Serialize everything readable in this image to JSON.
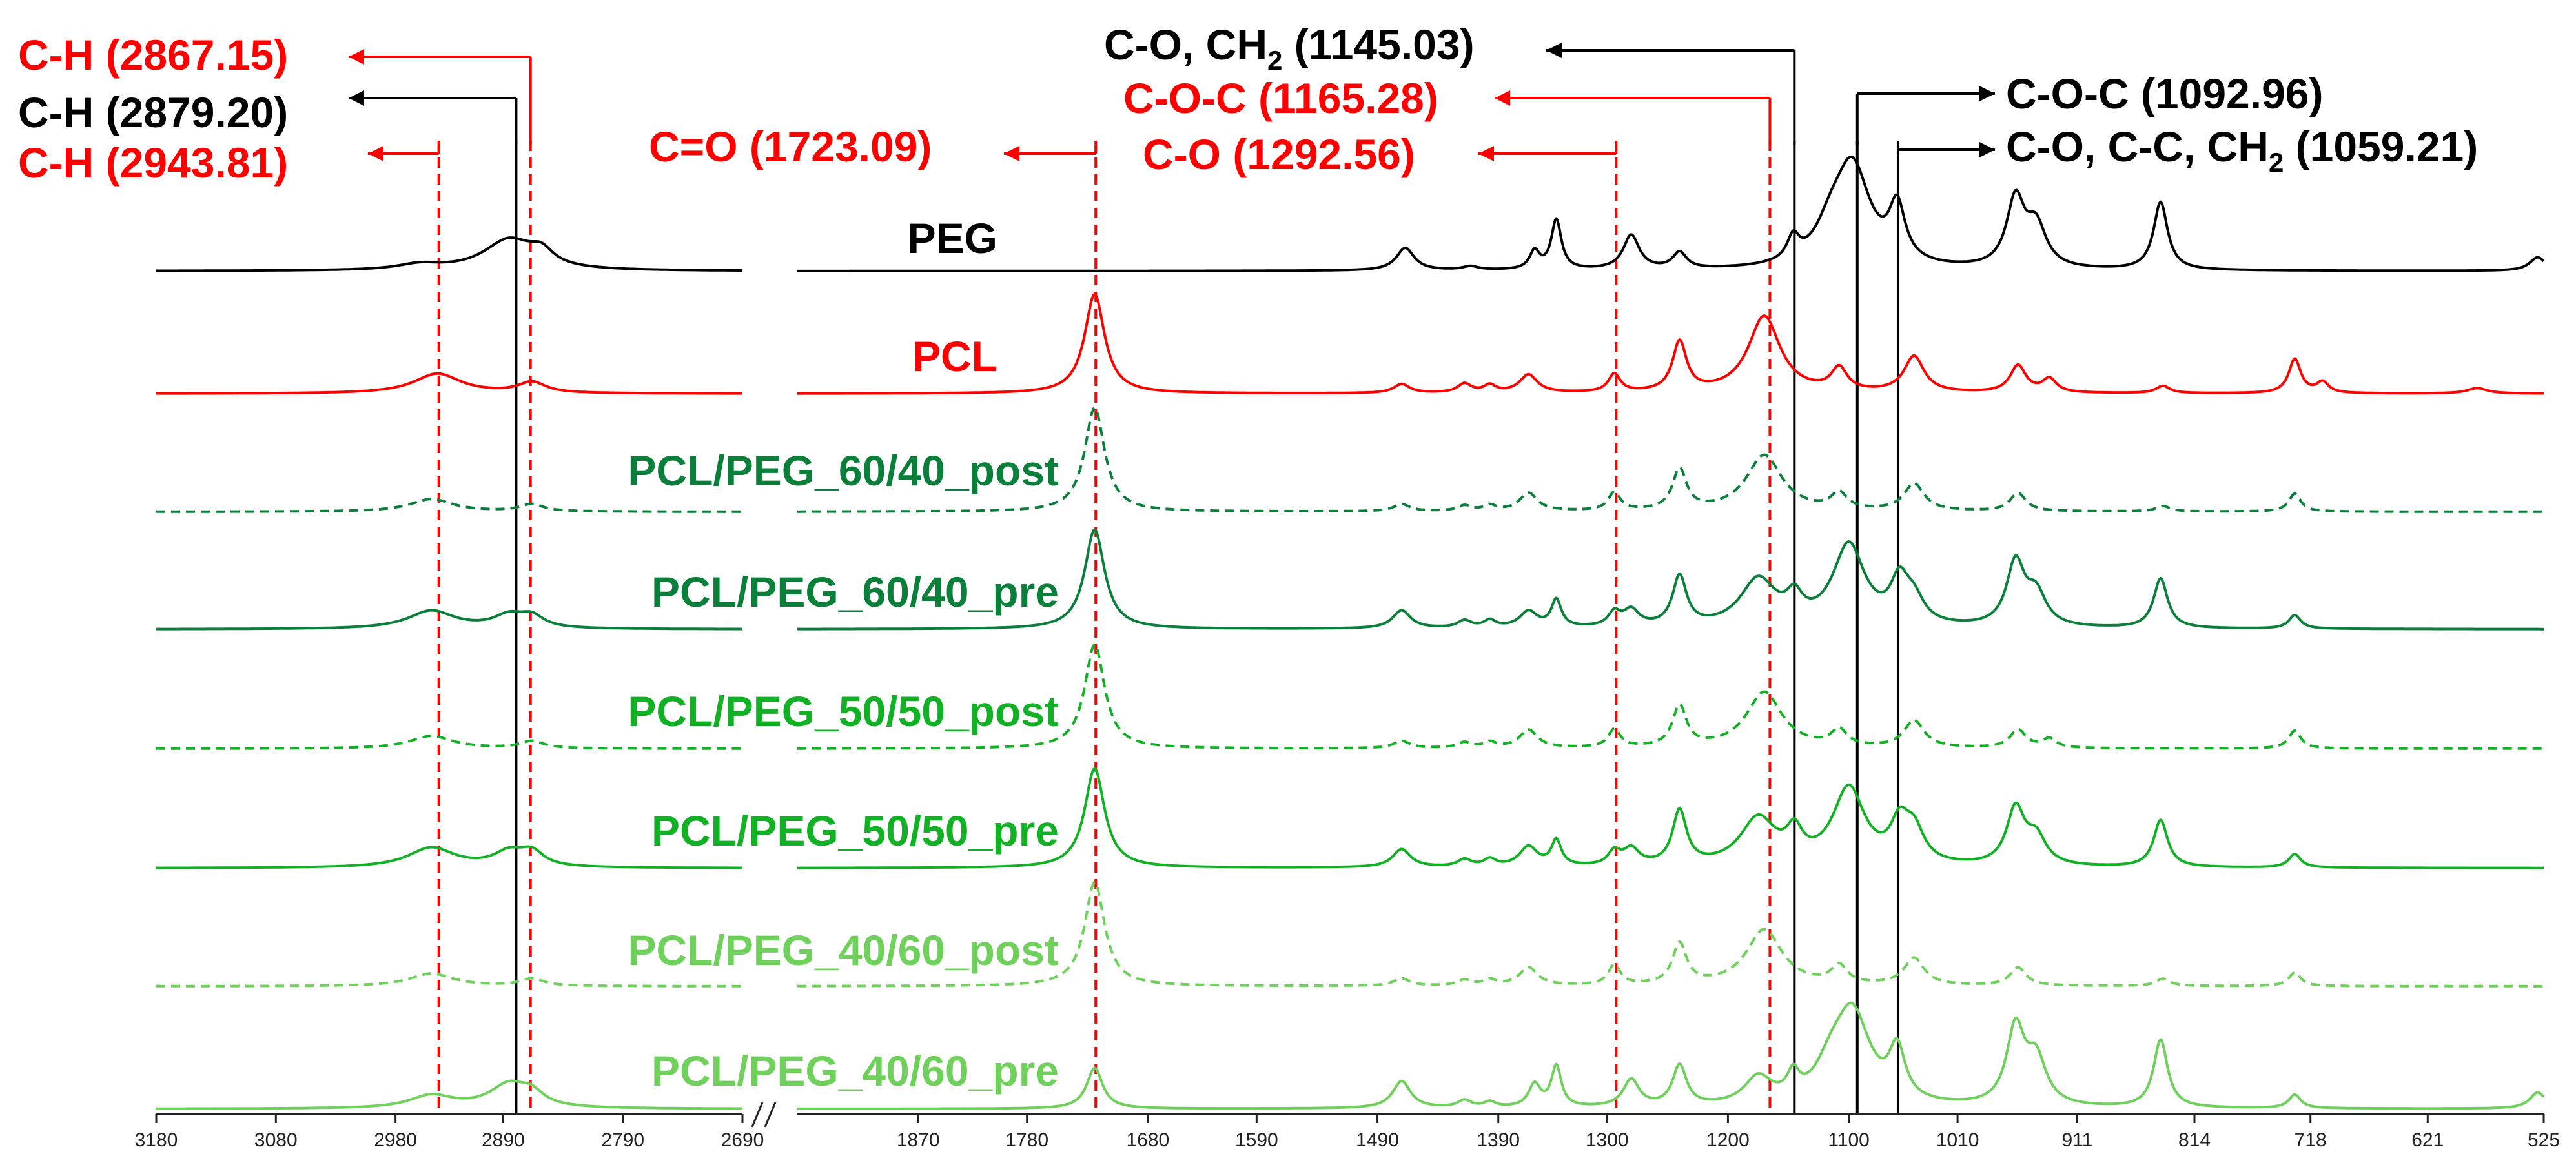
{
  "chart_data": {
    "type": "line",
    "title": "",
    "xlabel": "",
    "ylabel": "",
    "axis_break": "//",
    "x_axis": {
      "reversed": true,
      "left_segment": {
        "range": [
          3180,
          2690
        ],
        "ticks": [
          3180,
          3080,
          2980,
          2890,
          2790,
          2690
        ]
      },
      "right_segment": {
        "range": [
          1970,
          525
        ],
        "ticks": [
          1870,
          1780,
          1680,
          1590,
          1490,
          1390,
          1300,
          1200,
          1100,
          1010,
          911,
          814,
          718,
          621,
          525
        ]
      }
    },
    "series": [
      {
        "name": "PEG",
        "color": "#000000",
        "dash": false,
        "peaks": [
          {
            "x": 2960,
            "h": 0.06,
            "w": 22
          },
          {
            "x": 2885,
            "h": 0.34,
            "w": 26
          },
          {
            "x": 2858,
            "h": 0.15,
            "w": 12
          },
          {
            "x": 1467,
            "h": 0.25,
            "w": 9
          },
          {
            "x": 1413,
            "h": 0.04,
            "w": 8
          },
          {
            "x": 1360,
            "h": 0.2,
            "w": 5
          },
          {
            "x": 1342,
            "h": 0.55,
            "w": 5
          },
          {
            "x": 1280,
            "h": 0.38,
            "w": 8
          },
          {
            "x": 1240,
            "h": 0.18,
            "w": 7
          },
          {
            "x": 1146,
            "h": 0.25,
            "w": 6
          },
          {
            "x": 1097,
            "h": 1.1,
            "w": 18
          },
          {
            "x": 1115,
            "h": 0.3,
            "w": 15
          },
          {
            "x": 1060,
            "h": 0.6,
            "w": 8
          },
          {
            "x": 962,
            "h": 0.75,
            "w": 9
          },
          {
            "x": 945,
            "h": 0.45,
            "w": 10
          },
          {
            "x": 842,
            "h": 0.75,
            "w": 7
          },
          {
            "x": 530,
            "h": 0.15,
            "w": 8
          }
        ]
      },
      {
        "name": "PCL",
        "color": "#ff0000",
        "dash": false,
        "peaks": [
          {
            "x": 2945,
            "h": 0.22,
            "w": 24
          },
          {
            "x": 2866,
            "h": 0.12,
            "w": 14
          },
          {
            "x": 1724,
            "h": 1.1,
            "w": 10
          },
          {
            "x": 1470,
            "h": 0.1,
            "w": 8
          },
          {
            "x": 1418,
            "h": 0.1,
            "w": 7
          },
          {
            "x": 1397,
            "h": 0.08,
            "w": 6
          },
          {
            "x": 1365,
            "h": 0.2,
            "w": 9
          },
          {
            "x": 1294,
            "h": 0.2,
            "w": 6
          },
          {
            "x": 1240,
            "h": 0.55,
            "w": 7
          },
          {
            "x": 1170,
            "h": 0.85,
            "w": 16
          },
          {
            "x": 1108,
            "h": 0.25,
            "w": 8
          },
          {
            "x": 1046,
            "h": 0.4,
            "w": 10
          },
          {
            "x": 960,
            "h": 0.3,
            "w": 8
          },
          {
            "x": 934,
            "h": 0.15,
            "w": 7
          },
          {
            "x": 840,
            "h": 0.08,
            "w": 7
          },
          {
            "x": 731,
            "h": 0.38,
            "w": 6
          },
          {
            "x": 708,
            "h": 0.12,
            "w": 6
          },
          {
            "x": 580,
            "h": 0.06,
            "w": 10
          }
        ]
      },
      {
        "name": "PCL/PEG_60/40_post",
        "color": "#0a7f3a",
        "dash": true,
        "peaks": [
          {
            "x": 2950,
            "h": 0.14,
            "w": 22
          },
          {
            "x": 2866,
            "h": 0.08,
            "w": 12
          },
          {
            "x": 1724,
            "h": 1.15,
            "w": 10
          },
          {
            "x": 1470,
            "h": 0.08,
            "w": 8
          },
          {
            "x": 1418,
            "h": 0.06,
            "w": 7
          },
          {
            "x": 1397,
            "h": 0.06,
            "w": 6
          },
          {
            "x": 1365,
            "h": 0.2,
            "w": 9
          },
          {
            "x": 1294,
            "h": 0.2,
            "w": 6
          },
          {
            "x": 1240,
            "h": 0.45,
            "w": 7
          },
          {
            "x": 1170,
            "h": 0.62,
            "w": 18
          },
          {
            "x": 1108,
            "h": 0.18,
            "w": 8
          },
          {
            "x": 1046,
            "h": 0.3,
            "w": 10
          },
          {
            "x": 960,
            "h": 0.2,
            "w": 8
          },
          {
            "x": 840,
            "h": 0.06,
            "w": 7
          },
          {
            "x": 731,
            "h": 0.2,
            "w": 6
          }
        ]
      },
      {
        "name": "PCL/PEG_60/40_pre",
        "color": "#0a7f3a",
        "dash": false,
        "peaks": [
          {
            "x": 2950,
            "h": 0.2,
            "w": 24
          },
          {
            "x": 2885,
            "h": 0.14,
            "w": 16
          },
          {
            "x": 2866,
            "h": 0.12,
            "w": 12
          },
          {
            "x": 1724,
            "h": 1.1,
            "w": 10
          },
          {
            "x": 1470,
            "h": 0.2,
            "w": 9
          },
          {
            "x": 1418,
            "h": 0.08,
            "w": 7
          },
          {
            "x": 1397,
            "h": 0.08,
            "w": 6
          },
          {
            "x": 1365,
            "h": 0.18,
            "w": 9
          },
          {
            "x": 1342,
            "h": 0.3,
            "w": 5
          },
          {
            "x": 1294,
            "h": 0.15,
            "w": 6
          },
          {
            "x": 1280,
            "h": 0.18,
            "w": 8
          },
          {
            "x": 1240,
            "h": 0.55,
            "w": 7
          },
          {
            "x": 1175,
            "h": 0.52,
            "w": 18
          },
          {
            "x": 1145,
            "h": 0.25,
            "w": 8
          },
          {
            "x": 1100,
            "h": 0.9,
            "w": 16
          },
          {
            "x": 1058,
            "h": 0.45,
            "w": 9
          },
          {
            "x": 1046,
            "h": 0.25,
            "w": 10
          },
          {
            "x": 962,
            "h": 0.7,
            "w": 9
          },
          {
            "x": 945,
            "h": 0.35,
            "w": 10
          },
          {
            "x": 842,
            "h": 0.55,
            "w": 7
          },
          {
            "x": 731,
            "h": 0.15,
            "w": 6
          }
        ]
      },
      {
        "name": "PCL/PEG_50/50_post",
        "color": "#12b024",
        "dash": true,
        "peaks": [
          {
            "x": 2950,
            "h": 0.14,
            "w": 22
          },
          {
            "x": 2866,
            "h": 0.08,
            "w": 12
          },
          {
            "x": 1724,
            "h": 1.15,
            "w": 10
          },
          {
            "x": 1470,
            "h": 0.08,
            "w": 8
          },
          {
            "x": 1418,
            "h": 0.06,
            "w": 7
          },
          {
            "x": 1397,
            "h": 0.06,
            "w": 6
          },
          {
            "x": 1365,
            "h": 0.2,
            "w": 9
          },
          {
            "x": 1294,
            "h": 0.2,
            "w": 6
          },
          {
            "x": 1240,
            "h": 0.45,
            "w": 7
          },
          {
            "x": 1170,
            "h": 0.62,
            "w": 18
          },
          {
            "x": 1108,
            "h": 0.18,
            "w": 8
          },
          {
            "x": 1046,
            "h": 0.3,
            "w": 10
          },
          {
            "x": 960,
            "h": 0.2,
            "w": 8
          },
          {
            "x": 934,
            "h": 0.1,
            "w": 7
          },
          {
            "x": 731,
            "h": 0.2,
            "w": 6
          }
        ]
      },
      {
        "name": "PCL/PEG_50/50_pre",
        "color": "#12b024",
        "dash": false,
        "peaks": [
          {
            "x": 2950,
            "h": 0.22,
            "w": 24
          },
          {
            "x": 2885,
            "h": 0.16,
            "w": 16
          },
          {
            "x": 2866,
            "h": 0.15,
            "w": 12
          },
          {
            "x": 1724,
            "h": 1.1,
            "w": 10
          },
          {
            "x": 1470,
            "h": 0.2,
            "w": 9
          },
          {
            "x": 1418,
            "h": 0.08,
            "w": 7
          },
          {
            "x": 1397,
            "h": 0.08,
            "w": 6
          },
          {
            "x": 1365,
            "h": 0.22,
            "w": 9
          },
          {
            "x": 1342,
            "h": 0.28,
            "w": 5
          },
          {
            "x": 1294,
            "h": 0.15,
            "w": 6
          },
          {
            "x": 1280,
            "h": 0.18,
            "w": 8
          },
          {
            "x": 1240,
            "h": 0.6,
            "w": 7
          },
          {
            "x": 1175,
            "h": 0.52,
            "w": 18
          },
          {
            "x": 1145,
            "h": 0.3,
            "w": 8
          },
          {
            "x": 1100,
            "h": 0.85,
            "w": 16
          },
          {
            "x": 1058,
            "h": 0.4,
            "w": 9
          },
          {
            "x": 1046,
            "h": 0.35,
            "w": 10
          },
          {
            "x": 962,
            "h": 0.62,
            "w": 9
          },
          {
            "x": 945,
            "h": 0.3,
            "w": 10
          },
          {
            "x": 842,
            "h": 0.52,
            "w": 7
          },
          {
            "x": 731,
            "h": 0.15,
            "w": 6
          }
        ]
      },
      {
        "name": "PCL/PEG_40/60_post",
        "color": "#6fd15c",
        "dash": true,
        "peaks": [
          {
            "x": 2950,
            "h": 0.14,
            "w": 22
          },
          {
            "x": 2866,
            "h": 0.08,
            "w": 12
          },
          {
            "x": 1724,
            "h": 1.15,
            "w": 10
          },
          {
            "x": 1470,
            "h": 0.08,
            "w": 8
          },
          {
            "x": 1418,
            "h": 0.06,
            "w": 7
          },
          {
            "x": 1397,
            "h": 0.06,
            "w": 6
          },
          {
            "x": 1365,
            "h": 0.2,
            "w": 9
          },
          {
            "x": 1294,
            "h": 0.22,
            "w": 6
          },
          {
            "x": 1240,
            "h": 0.45,
            "w": 7
          },
          {
            "x": 1170,
            "h": 0.62,
            "w": 18
          },
          {
            "x": 1108,
            "h": 0.2,
            "w": 8
          },
          {
            "x": 1046,
            "h": 0.3,
            "w": 10
          },
          {
            "x": 960,
            "h": 0.2,
            "w": 8
          },
          {
            "x": 840,
            "h": 0.08,
            "w": 7
          },
          {
            "x": 731,
            "h": 0.15,
            "w": 6
          }
        ]
      },
      {
        "name": "PCL/PEG_40/60_pre",
        "color": "#6fd15c",
        "dash": false,
        "peaks": [
          {
            "x": 2950,
            "h": 0.14,
            "w": 22
          },
          {
            "x": 2885,
            "h": 0.26,
            "w": 20
          },
          {
            "x": 2866,
            "h": 0.12,
            "w": 12
          },
          {
            "x": 1724,
            "h": 0.45,
            "w": 8
          },
          {
            "x": 1470,
            "h": 0.3,
            "w": 9
          },
          {
            "x": 1418,
            "h": 0.08,
            "w": 7
          },
          {
            "x": 1397,
            "h": 0.06,
            "w": 6
          },
          {
            "x": 1360,
            "h": 0.25,
            "w": 6
          },
          {
            "x": 1342,
            "h": 0.45,
            "w": 5
          },
          {
            "x": 1280,
            "h": 0.3,
            "w": 8
          },
          {
            "x": 1240,
            "h": 0.45,
            "w": 7
          },
          {
            "x": 1175,
            "h": 0.3,
            "w": 14
          },
          {
            "x": 1146,
            "h": 0.25,
            "w": 6
          },
          {
            "x": 1097,
            "h": 1.0,
            "w": 18
          },
          {
            "x": 1115,
            "h": 0.3,
            "w": 15
          },
          {
            "x": 1060,
            "h": 0.55,
            "w": 8
          },
          {
            "x": 962,
            "h": 0.85,
            "w": 9
          },
          {
            "x": 945,
            "h": 0.5,
            "w": 10
          },
          {
            "x": 842,
            "h": 0.75,
            "w": 7
          },
          {
            "x": 731,
            "h": 0.15,
            "w": 6
          },
          {
            "x": 530,
            "h": 0.18,
            "w": 8
          }
        ]
      }
    ],
    "reference_lines": [
      {
        "x": 2943.81,
        "color": "#ff0000",
        "dash": true
      },
      {
        "x": 2879.2,
        "color": "#000000",
        "dash": false
      },
      {
        "x": 2867.15,
        "color": "#ff0000",
        "dash": true
      },
      {
        "x": 1723.09,
        "color": "#ff0000",
        "dash": true
      },
      {
        "x": 1292.56,
        "color": "#ff0000",
        "dash": true
      },
      {
        "x": 1165.28,
        "color": "#ff0000",
        "dash": true
      },
      {
        "x": 1145.03,
        "color": "#000000",
        "dash": false
      },
      {
        "x": 1092.96,
        "color": "#000000",
        "dash": false
      },
      {
        "x": 1059.21,
        "color": "#000000",
        "dash": false
      }
    ],
    "annotations": [
      {
        "text": "C-H (2867.15)",
        "x": 2867.15,
        "color": "#ff0000",
        "side": "left"
      },
      {
        "text": "C-H (2879.20)",
        "x": 2879.2,
        "color": "#000000",
        "side": "left"
      },
      {
        "text": "C-H (2943.81)",
        "x": 2943.81,
        "color": "#ff0000",
        "side": "left"
      },
      {
        "text": "C=O (1723.09)",
        "x": 1723.09,
        "color": "#ff0000",
        "side": "left"
      },
      {
        "text": "C-O, CH2 (1145.03)",
        "x": 1145.03,
        "color": "#000000",
        "side": "left"
      },
      {
        "text": "C-O-C (1165.28)",
        "x": 1165.28,
        "color": "#ff0000",
        "side": "left"
      },
      {
        "text": "C-O (1292.56)",
        "x": 1292.56,
        "color": "#ff0000",
        "side": "left"
      },
      {
        "text": "C-O-C (1092.96)",
        "x": 1092.96,
        "color": "#000000",
        "side": "right"
      },
      {
        "text": "C-O, C-C, CH2 (1059.21)",
        "x": 1059.21,
        "color": "#000000",
        "side": "right"
      }
    ]
  }
}
